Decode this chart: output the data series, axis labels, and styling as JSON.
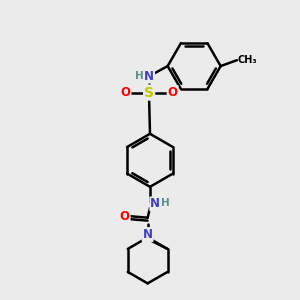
{
  "bg_color": "#ebebeb",
  "bond_color": "#000000",
  "atom_colors": {
    "N": "#4040c0",
    "O": "#ff0000",
    "S": "#c8c800",
    "H": "#5a9090",
    "C": "#000000"
  },
  "fig_w": 3.0,
  "fig_h": 3.0,
  "dpi": 100
}
